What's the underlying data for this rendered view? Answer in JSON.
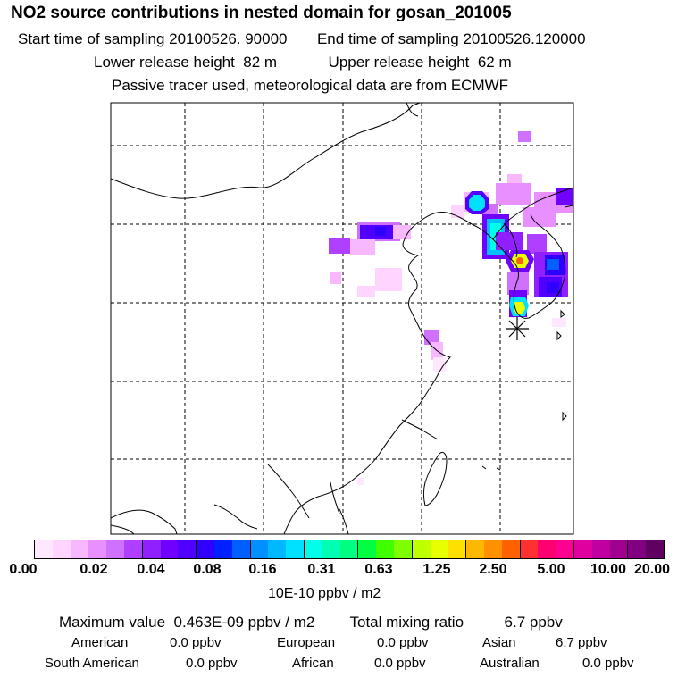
{
  "header": {
    "title": "NO2 source contributions in nested domain for gosan_201005",
    "start_label": "Start time of sampling",
    "start_value": "20100526. 90000",
    "end_label": "End time of sampling",
    "end_value": "20100526.120000",
    "lower_label": "Lower release height",
    "lower_value": "82 m",
    "upper_label": "Upper release height",
    "upper_value": "62 m",
    "note": "Passive tracer used, meteorological data are from ECMWF"
  },
  "colorbar": {
    "colors": [
      "#ffe8ff",
      "#ffd4ff",
      "#f8b8ff",
      "#e890ff",
      "#d070ff",
      "#b040ff",
      "#9020ff",
      "#7000ff",
      "#5000ff",
      "#3000ff",
      "#0020ff",
      "#0060ff",
      "#0090ff",
      "#00b8ff",
      "#00e0ff",
      "#00ffe8",
      "#00ffb0",
      "#00ff80",
      "#00ff40",
      "#40ff00",
      "#80ff00",
      "#c0ff00",
      "#e8ff00",
      "#ffe000",
      "#ffb800",
      "#ff9000",
      "#ff6000",
      "#ff3030",
      "#ff0070",
      "#ff0090",
      "#e000a0",
      "#c000a0",
      "#a00090",
      "#800080",
      "#600060"
    ],
    "ticks": [
      "0.00",
      "0.02",
      "0.04",
      "0.08",
      "0.16",
      "0.31",
      "0.63",
      "1.25",
      "2.50",
      "5.00",
      "10.00",
      "20.00"
    ],
    "units": "10E-10 ppbv / m2"
  },
  "summary": {
    "max_label": "Maximum value",
    "max_value": "0.463E-09 ppbv / m2",
    "total_label": "Total mixing ratio",
    "total_value": "6.7 ppbv",
    "american_label": "American",
    "american_value": "0.0 ppbv",
    "european_label": "European",
    "european_value": "0.0 ppbv",
    "asian_label": "Asian",
    "asian_value": "6.7 ppbv",
    "samerican_label": "South American",
    "samerican_value": "0.0 ppbv",
    "african_label": "African",
    "african_value": "0.0 ppbv",
    "australian_label": "Australian",
    "australian_value": "0.0 ppbv"
  },
  "map": {
    "receptor_name": "gosan",
    "cell_levels": [
      0.01,
      0.02,
      0.03,
      0.05,
      0.1,
      0.2,
      0.4,
      1,
      2,
      4
    ]
  }
}
